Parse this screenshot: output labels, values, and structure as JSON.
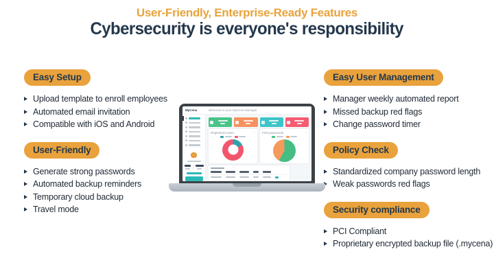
{
  "header": {
    "subtitle": "User-Friendly, Enterprise-Ready Features",
    "title": "Cybersecurity is everyone's responsibility"
  },
  "colors": {
    "accent_orange": "#E9A23C",
    "navy": "#24384C",
    "teal": "#2CB9B6",
    "card_green": "#49C389",
    "card_orange": "#F5925F",
    "card_teal": "#3DC4C9",
    "card_red": "#F45C72"
  },
  "columns": {
    "left": [
      {
        "badge": "Easy Setup",
        "items": [
          "Upload template to enroll employees",
          "Automated email invitation",
          "Compatible with iOS and Android"
        ]
      },
      {
        "badge": "User-Friendly",
        "items": [
          "Generate strong passwords",
          "Automated backup reminders",
          "Temporary cloud backup",
          "Travel mode"
        ]
      }
    ],
    "right": [
      {
        "badge": "Easy User Management",
        "items": [
          "Manager weekly automated report",
          "Missed backup red flags",
          "Change password timer"
        ]
      },
      {
        "badge": "Policy Check",
        "items": [
          "Standardized company password length",
          "Weak passwords red flags"
        ]
      },
      {
        "badge": "Security compliance",
        "items": [
          "PCI Compliant",
          "Proprietary encrypted backup file (.mycena)"
        ]
      }
    ]
  },
  "laptop": {
    "brand": "MyCena",
    "app_title": "Welcome to your MyCena Manager",
    "sidebar_item_count": 7,
    "card_colors": [
      "#49C389",
      "#F5925F",
      "#3DC4C9",
      "#F45C72"
    ],
    "panels": [
      {
        "title": "Registered users",
        "chart": {
          "type": "donut",
          "slices": [
            {
              "color": "#2EA3AB",
              "value": 17
            },
            {
              "color": "#F2566C",
              "value": 83
            }
          ]
        }
      },
      {
        "title": "First passwords",
        "chart": {
          "type": "pie",
          "slices": [
            {
              "color": "#46BE83",
              "value": 58
            },
            {
              "color": "#F69A5C",
              "value": 42
            }
          ]
        }
      }
    ],
    "table_column_count": 5
  }
}
